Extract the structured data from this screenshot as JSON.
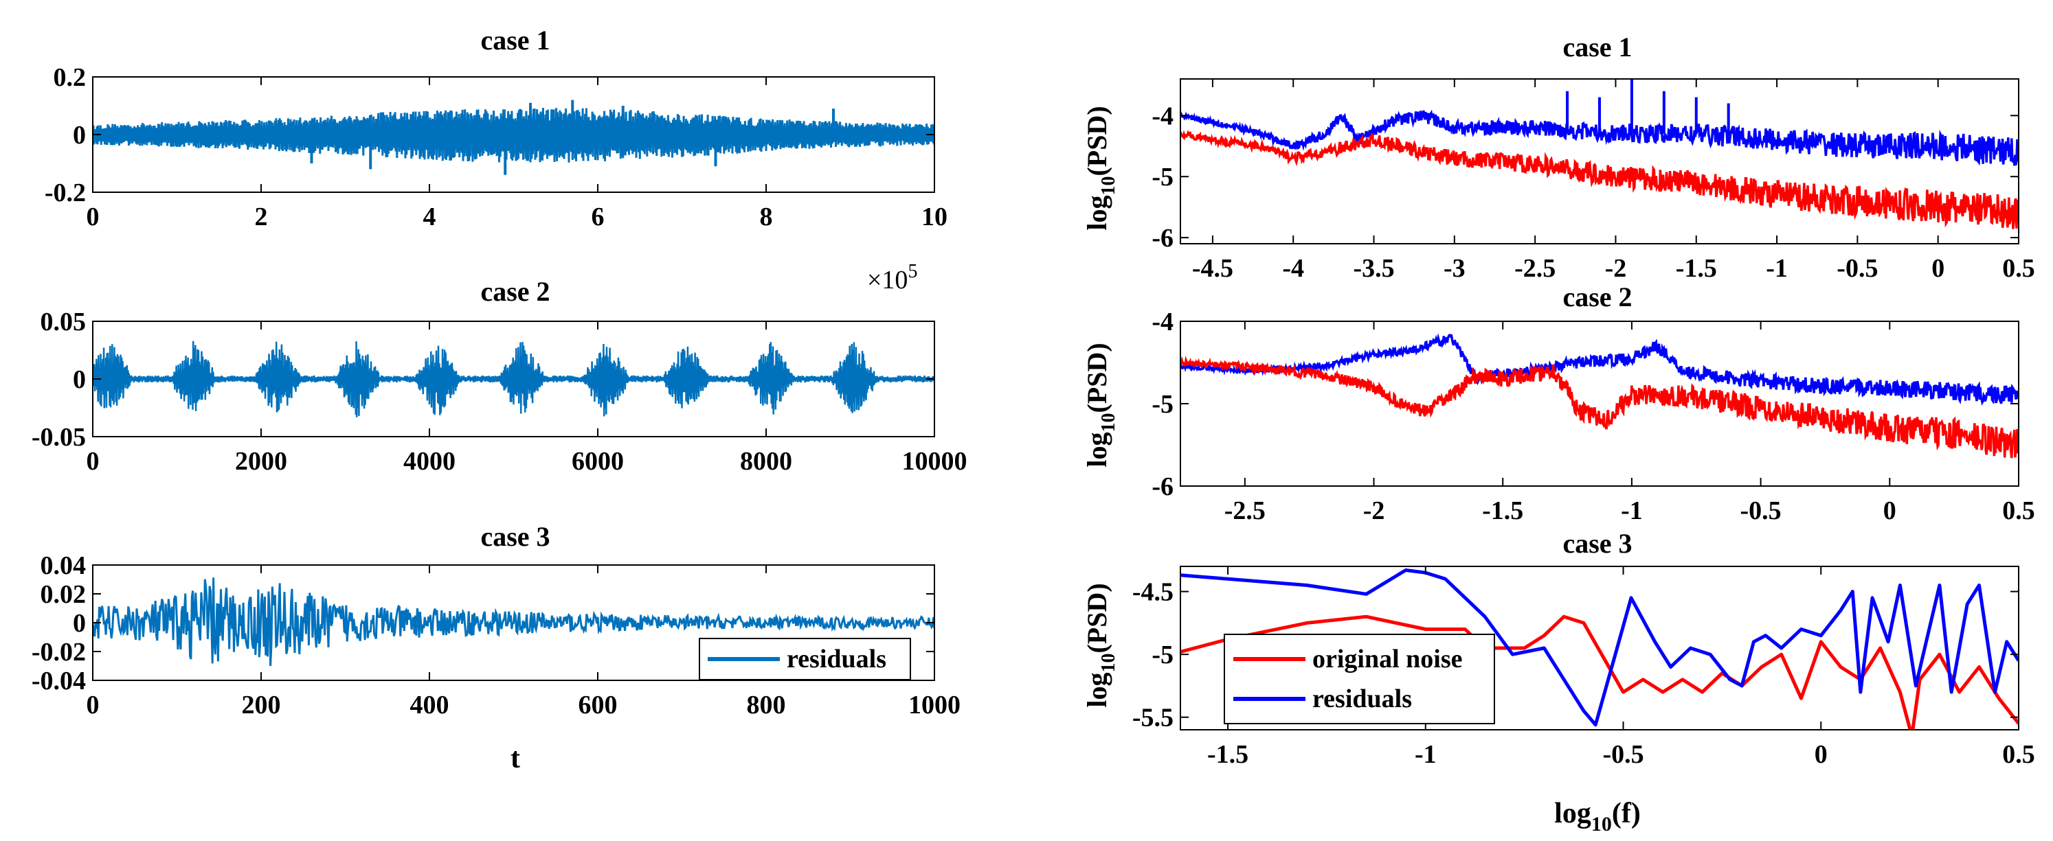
{
  "figure": {
    "xlabel_left": "t",
    "xlabel_right": {
      "base": "log",
      "sub": "10",
      "arg": "(f)"
    }
  },
  "chart_data": [
    {
      "id": "left1",
      "type": "line",
      "title": "case 1",
      "xlim": [
        0,
        10
      ],
      "ylim": [
        -0.2,
        0.2
      ],
      "xticks": [
        "0",
        "2",
        "4",
        "6",
        "8",
        "10"
      ],
      "xtick_values": [
        0,
        2,
        4,
        6,
        8,
        10
      ],
      "yticks": [
        "0.2",
        "0",
        "-0.2"
      ],
      "ytick_values": [
        0.2,
        0,
        -0.2
      ],
      "x_exponent_label": {
        "prefix": "×10",
        "exp": "5"
      },
      "series": [
        {
          "name": "residuals",
          "color": "#0072BD",
          "style": "band",
          "x": [
            0,
            0.5,
            1,
            1.5,
            2,
            2.5,
            3,
            3.5,
            4,
            4.5,
            5,
            5.5,
            6,
            6.5,
            7,
            7.5,
            8,
            8.5,
            9,
            9.5,
            10
          ],
          "upper": [
            0.035,
            0.04,
            0.045,
            0.05,
            0.055,
            0.06,
            0.07,
            0.08,
            0.085,
            0.09,
            0.095,
            0.095,
            0.09,
            0.085,
            0.075,
            0.065,
            0.055,
            0.05,
            0.045,
            0.04,
            0.04
          ],
          "lower": [
            -0.035,
            -0.04,
            -0.045,
            -0.05,
            -0.055,
            -0.065,
            -0.07,
            -0.08,
            -0.09,
            -0.095,
            -0.1,
            -0.1,
            -0.095,
            -0.085,
            -0.08,
            -0.07,
            -0.06,
            -0.05,
            -0.045,
            -0.04,
            -0.04
          ],
          "spikes": [
            [
              3.3,
              -0.12
            ],
            [
              4.9,
              -0.14
            ],
            [
              5.7,
              0.12
            ],
            [
              6.3,
              0.1
            ],
            [
              7.4,
              -0.11
            ],
            [
              5.2,
              0.11
            ],
            [
              2.6,
              -0.1
            ],
            [
              8.8,
              0.09
            ]
          ]
        }
      ]
    },
    {
      "id": "left2",
      "type": "line",
      "title": "case 2",
      "xlim": [
        0,
        10000
      ],
      "ylim": [
        -0.05,
        0.05
      ],
      "xticks": [
        "0",
        "2000",
        "4000",
        "6000",
        "8000",
        "10000"
      ],
      "xtick_values": [
        0,
        2000,
        4000,
        6000,
        8000,
        10000
      ],
      "yticks": [
        "0.05",
        "0",
        "-0.05"
      ],
      "ytick_values": [
        0.05,
        0,
        -0.05
      ],
      "series": [
        {
          "name": "residuals",
          "color": "#0072BD",
          "style": "bursts",
          "burst_centers": [
            200,
            1200,
            2200,
            3150,
            4100,
            5100,
            6100,
            7050,
            8050,
            9050
          ],
          "burst_amplitude": 0.035,
          "burst_halfwidth": 280,
          "baseline": 0.003
        }
      ]
    },
    {
      "id": "left3",
      "type": "line",
      "title": "case 3",
      "xlim": [
        0,
        1000
      ],
      "ylim": [
        -0.04,
        0.04
      ],
      "xticks": [
        "0",
        "200",
        "400",
        "600",
        "800",
        "1000"
      ],
      "xtick_values": [
        0,
        200,
        400,
        600,
        800,
        1000
      ],
      "yticks": [
        "0.04",
        "0.02",
        "0",
        "-0.02",
        "-0.04"
      ],
      "ytick_values": [
        0.04,
        0.02,
        0,
        -0.02,
        -0.04
      ],
      "legend": {
        "location": "bottom-right",
        "entries": [
          "residuals"
        ]
      },
      "series": [
        {
          "name": "residuals",
          "color": "#0072BD",
          "style": "noise",
          "envelope_x": [
            0,
            50,
            100,
            140,
            180,
            210,
            250,
            300,
            400,
            500,
            600,
            700,
            800,
            900,
            1000
          ],
          "envelope": [
            0.012,
            0.012,
            0.02,
            0.034,
            0.018,
            0.032,
            0.022,
            0.014,
            0.01,
            0.008,
            0.006,
            0.005,
            0.004,
            0.004,
            0.004
          ]
        }
      ]
    },
    {
      "id": "right1",
      "type": "line",
      "title": "case 1",
      "xlim": [
        -4.7,
        0.5
      ],
      "ylim": [
        -6.1,
        -3.4
      ],
      "xticks": [
        "-4.5",
        "-4",
        "-3.5",
        "-3",
        "-2.5",
        "-2",
        "-1.5",
        "-1",
        "-0.5",
        "0",
        "0.5"
      ],
      "xtick_values": [
        -4.5,
        -4,
        -3.5,
        -3,
        -2.5,
        -2,
        -1.5,
        -1,
        -0.5,
        0,
        0.5
      ],
      "yticks": [
        "-4",
        "-5",
        "-6"
      ],
      "ytick_values": [
        -4,
        -5,
        -6
      ],
      "ylabel": {
        "base": "log",
        "sub": "10",
        "arg": "(PSD)"
      },
      "series": [
        {
          "name": "residuals",
          "color": "#0000FF",
          "style": "psd",
          "x": [
            -4.7,
            -4.5,
            -4.2,
            -4,
            -3.8,
            -3.7,
            -3.6,
            -3.4,
            -3.2,
            -3,
            -2.5,
            -2,
            -1.5,
            -1,
            -0.5,
            0,
            0.5
          ],
          "y": [
            -4.0,
            -4.1,
            -4.3,
            -4.5,
            -4.3,
            -4.0,
            -4.4,
            -4.1,
            -4.0,
            -4.2,
            -4.2,
            -4.3,
            -4.3,
            -4.4,
            -4.5,
            -4.5,
            -4.6
          ],
          "noise": 0.25,
          "spikes": [
            [
              -2.3,
              -3.6
            ],
            [
              -1.9,
              -3.4
            ],
            [
              -1.7,
              -3.6
            ],
            [
              -1.5,
              -3.7
            ],
            [
              -1.3,
              -3.8
            ],
            [
              -2.1,
              -3.7
            ]
          ]
        },
        {
          "name": "original noise",
          "color": "#FF0000",
          "style": "psd",
          "x": [
            -4.7,
            -4.5,
            -4.2,
            -4,
            -3.8,
            -3.5,
            -3.2,
            -3,
            -2.5,
            -2,
            -1.5,
            -1,
            -0.5,
            0,
            0.5
          ],
          "y": [
            -4.3,
            -4.4,
            -4.5,
            -4.7,
            -4.6,
            -4.4,
            -4.6,
            -4.7,
            -4.8,
            -5.0,
            -5.1,
            -5.3,
            -5.4,
            -5.5,
            -5.6
          ],
          "noise": 0.3,
          "spikes": []
        }
      ]
    },
    {
      "id": "right2",
      "type": "line",
      "title": "case 2",
      "xlim": [
        -2.75,
        0.5
      ],
      "ylim": [
        -6,
        -4
      ],
      "xticks": [
        "-2.5",
        "-2",
        "-1.5",
        "-1",
        "-0.5",
        "0",
        "0.5"
      ],
      "xtick_values": [
        -2.5,
        -2,
        -1.5,
        -1,
        -0.5,
        0,
        0.5
      ],
      "yticks": [
        "-4",
        "-5",
        "-6"
      ],
      "ytick_values": [
        -4,
        -5,
        -6
      ],
      "ylabel": {
        "base": "log",
        "sub": "10",
        "arg": "(PSD)"
      },
      "series": [
        {
          "name": "residuals",
          "color": "#0000FF",
          "style": "psd",
          "x": [
            -2.75,
            -2.5,
            -2.2,
            -2,
            -1.85,
            -1.7,
            -1.6,
            -1.55,
            -1.4,
            -1.2,
            -1,
            -0.9,
            -0.8,
            -0.6,
            -0.4,
            -0.2,
            0,
            0.2,
            0.5
          ],
          "y": [
            -4.55,
            -4.6,
            -4.55,
            -4.4,
            -4.35,
            -4.2,
            -4.7,
            -4.65,
            -4.6,
            -4.5,
            -4.45,
            -4.3,
            -4.6,
            -4.7,
            -4.75,
            -4.8,
            -4.8,
            -4.85,
            -4.9
          ],
          "noise": 0.12,
          "spikes": []
        },
        {
          "name": "original noise",
          "color": "#FF0000",
          "style": "psd",
          "x": [
            -2.75,
            -2.5,
            -2.2,
            -2,
            -1.9,
            -1.8,
            -1.7,
            -1.6,
            -1.5,
            -1.3,
            -1.2,
            -1.1,
            -1,
            -0.8,
            -0.6,
            -0.4,
            -0.2,
            0,
            0.2,
            0.5
          ],
          "y": [
            -4.5,
            -4.55,
            -4.65,
            -4.8,
            -5.0,
            -5.1,
            -4.9,
            -4.65,
            -4.7,
            -4.6,
            -5.1,
            -5.2,
            -4.9,
            -4.9,
            -5.0,
            -5.1,
            -5.2,
            -5.3,
            -5.35,
            -5.5
          ],
          "noise": 0.2,
          "spikes": []
        }
      ]
    },
    {
      "id": "right3",
      "type": "line",
      "title": "case 3",
      "xlim": [
        -1.62,
        0.5
      ],
      "ylim": [
        -5.6,
        -4.3
      ],
      "xticks": [
        "-1.5",
        "-1",
        "-0.5",
        "0",
        "0.5"
      ],
      "xtick_values": [
        -1.5,
        -1,
        -0.5,
        0,
        0.5
      ],
      "yticks": [
        "-4.5",
        "-5",
        "-5.5"
      ],
      "ytick_values": [
        -4.5,
        -5,
        -5.5
      ],
      "ylabel": {
        "base": "log",
        "sub": "10",
        "arg": "(PSD)"
      },
      "legend": {
        "location": "bottom-left",
        "entries": [
          "original noise",
          "residuals"
        ]
      },
      "series": [
        {
          "name": "original noise",
          "color": "#FF0000",
          "style": "line",
          "x": [
            -1.62,
            -1.5,
            -1.3,
            -1.15,
            -1.0,
            -0.9,
            -0.85,
            -0.75,
            -0.7,
            -0.65,
            -0.6,
            -0.5,
            -0.45,
            -0.4,
            -0.35,
            -0.3,
            -0.25,
            -0.2,
            -0.15,
            -0.1,
            -0.05,
            0.0,
            0.05,
            0.1,
            0.15,
            0.2,
            0.23,
            0.25,
            0.3,
            0.35,
            0.4,
            0.45,
            0.5
          ],
          "y": [
            -4.98,
            -4.88,
            -4.75,
            -4.7,
            -4.8,
            -4.8,
            -4.95,
            -4.95,
            -4.85,
            -4.7,
            -4.75,
            -5.3,
            -5.2,
            -5.3,
            -5.2,
            -5.3,
            -5.15,
            -5.25,
            -5.1,
            -5.0,
            -5.35,
            -4.9,
            -5.1,
            -5.2,
            -4.95,
            -5.3,
            -5.65,
            -5.2,
            -5.0,
            -5.3,
            -5.1,
            -5.35,
            -5.55
          ]
        },
        {
          "name": "residuals",
          "color": "#0000FF",
          "style": "line",
          "x": [
            -1.62,
            -1.5,
            -1.3,
            -1.15,
            -1.05,
            -1.0,
            -0.95,
            -0.85,
            -0.78,
            -0.7,
            -0.65,
            -0.6,
            -0.57,
            -0.52,
            -0.48,
            -0.42,
            -0.38,
            -0.33,
            -0.28,
            -0.23,
            -0.2,
            -0.17,
            -0.14,
            -0.1,
            -0.05,
            0.0,
            0.05,
            0.08,
            0.1,
            0.13,
            0.17,
            0.2,
            0.24,
            0.27,
            0.3,
            0.33,
            0.37,
            0.4,
            0.44,
            0.47,
            0.5
          ],
          "y": [
            -4.37,
            -4.4,
            -4.45,
            -4.52,
            -4.33,
            -4.35,
            -4.4,
            -4.7,
            -5.0,
            -4.95,
            -5.2,
            -5.45,
            -5.56,
            -5.0,
            -4.55,
            -4.9,
            -5.1,
            -4.95,
            -5.0,
            -5.2,
            -5.25,
            -4.9,
            -4.85,
            -4.95,
            -4.8,
            -4.85,
            -4.65,
            -4.5,
            -5.3,
            -4.55,
            -4.9,
            -4.45,
            -5.25,
            -4.85,
            -4.45,
            -5.3,
            -4.6,
            -4.45,
            -5.3,
            -4.9,
            -5.05
          ]
        }
      ]
    }
  ]
}
